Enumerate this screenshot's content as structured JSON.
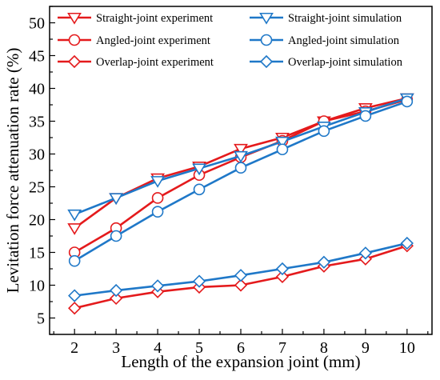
{
  "chart_data": {
    "type": "line",
    "xlabel": "Length of the expansion joint (mm)",
    "ylabel": "Levitation force attenuation rate (%)",
    "x": [
      2,
      3,
      4,
      5,
      6,
      7,
      8,
      9,
      10
    ],
    "xlim": [
      1.4,
      10.6
    ],
    "ylim": [
      2.5,
      52.5
    ],
    "xticks": [
      2,
      3,
      4,
      5,
      6,
      7,
      8,
      9,
      10
    ],
    "yticks": [
      5,
      10,
      15,
      20,
      25,
      30,
      35,
      40,
      45,
      50
    ],
    "grid": false,
    "legend_position": "top-left",
    "legend_columns": 2,
    "colors": {
      "experiment": "#e41a1c",
      "simulation": "#1f78c8"
    },
    "series": [
      {
        "name": "Straight-joint experiment",
        "marker": "triangle-down",
        "color": "#e41a1c",
        "values": [
          18.7,
          23.3,
          26.3,
          28.1,
          30.8,
          32.5,
          35.0,
          37.0,
          38.5
        ]
      },
      {
        "name": "Angled-joint experiment",
        "marker": "circle",
        "color": "#e41a1c",
        "values": [
          15.0,
          18.7,
          23.3,
          26.8,
          29.5,
          32.0,
          35.0,
          36.5,
          38.3
        ]
      },
      {
        "name": "Overlap-joint experiment",
        "marker": "diamond",
        "color": "#e41a1c",
        "values": [
          6.5,
          8.0,
          9.0,
          9.7,
          10.0,
          11.3,
          12.9,
          14.0,
          16.0
        ]
      },
      {
        "name": "Straight-joint simulation",
        "marker": "triangle-down",
        "color": "#1f78c8",
        "values": [
          20.8,
          23.3,
          25.9,
          27.8,
          29.7,
          31.9,
          34.2,
          36.4,
          38.5
        ]
      },
      {
        "name": "Angled-joint simulation",
        "marker": "circle",
        "color": "#1f78c8",
        "values": [
          13.7,
          17.5,
          21.2,
          24.6,
          27.9,
          30.7,
          33.5,
          35.8,
          38.0
        ]
      },
      {
        "name": "Overlap-joint simulation",
        "marker": "diamond",
        "color": "#1f78c8",
        "values": [
          8.4,
          9.2,
          9.9,
          10.6,
          11.5,
          12.5,
          13.5,
          14.9,
          16.4
        ]
      }
    ]
  }
}
